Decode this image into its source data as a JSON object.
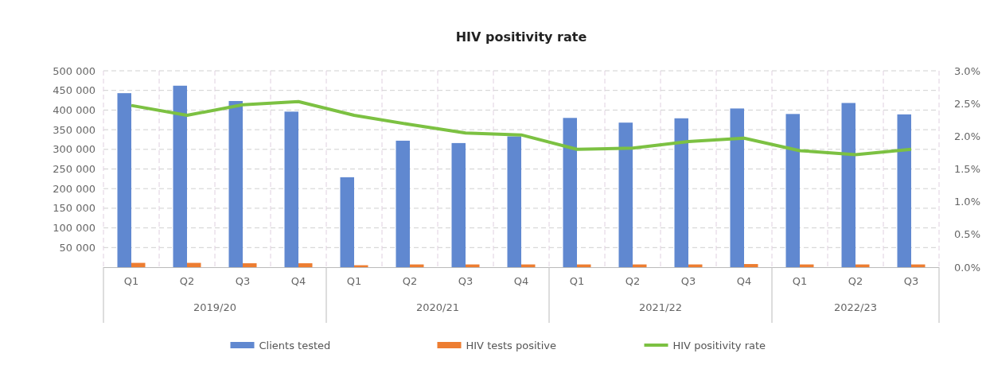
{
  "chart_data": {
    "type": "bar",
    "title": "HIV positivity rate",
    "categories": [
      "Q1",
      "Q2",
      "Q3",
      "Q4",
      "Q1",
      "Q2",
      "Q3",
      "Q4",
      "Q1",
      "Q2",
      "Q3",
      "Q4",
      "Q1",
      "Q2",
      "Q3"
    ],
    "series": [
      {
        "name": "Clients tested",
        "color": "#6088d0",
        "values": [
          443000,
          462000,
          423000,
          396000,
          229000,
          322000,
          316000,
          333000,
          380000,
          368000,
          379000,
          404000,
          390000,
          418000,
          389000
        ]
      },
      {
        "name": "HIV tests positive",
        "color": "#ed7d31",
        "values": [
          11000,
          11000,
          10000,
          10000,
          5000,
          7000,
          7000,
          7000,
          7000,
          7000,
          7000,
          8000,
          7000,
          7000,
          7000
        ]
      },
      {
        "name": "HIV positivity rate",
        "color": "#7cc142",
        "type": "line",
        "axis": "y2",
        "values": [
          2.47,
          2.32,
          2.48,
          2.53,
          2.32,
          2.18,
          2.05,
          2.02,
          1.8,
          1.82,
          1.92,
          1.97,
          1.78,
          1.72,
          1.8
        ]
      }
    ],
    "ylim": [
      0,
      500000
    ],
    "yticks": [
      {
        "value": 50000,
        "label": "50 000"
      },
      {
        "value": 100000,
        "label": "100 000"
      },
      {
        "value": 150000,
        "label": "150 000"
      },
      {
        "value": 200000,
        "label": "200 000"
      },
      {
        "value": 250000,
        "label": "250 000"
      },
      {
        "value": 300000,
        "label": "300 000"
      },
      {
        "value": 350000,
        "label": "350 000"
      },
      {
        "value": 400000,
        "label": "400 000"
      },
      {
        "value": 450000,
        "label": "450 000"
      },
      {
        "value": 500000,
        "label": "500 000"
      }
    ],
    "y2lim": [
      0,
      3
    ],
    "y2ticks": [
      {
        "value": 0,
        "label": "0.0%"
      },
      {
        "value": 0.5,
        "label": "0.5%"
      },
      {
        "value": 1,
        "label": "1.0%"
      },
      {
        "value": 1.5,
        "label": "1.5%"
      },
      {
        "value": 2,
        "label": "2.0%"
      },
      {
        "value": 2.5,
        "label": "2.5%"
      },
      {
        "value": 3,
        "label": "3.0%"
      }
    ],
    "annotations": [
      "2019/20",
      "2020/21",
      "2021/22",
      "2022/23"
    ],
    "grid": true,
    "legend": "bottom",
    "marker": "none",
    "line_style": "solid"
  }
}
